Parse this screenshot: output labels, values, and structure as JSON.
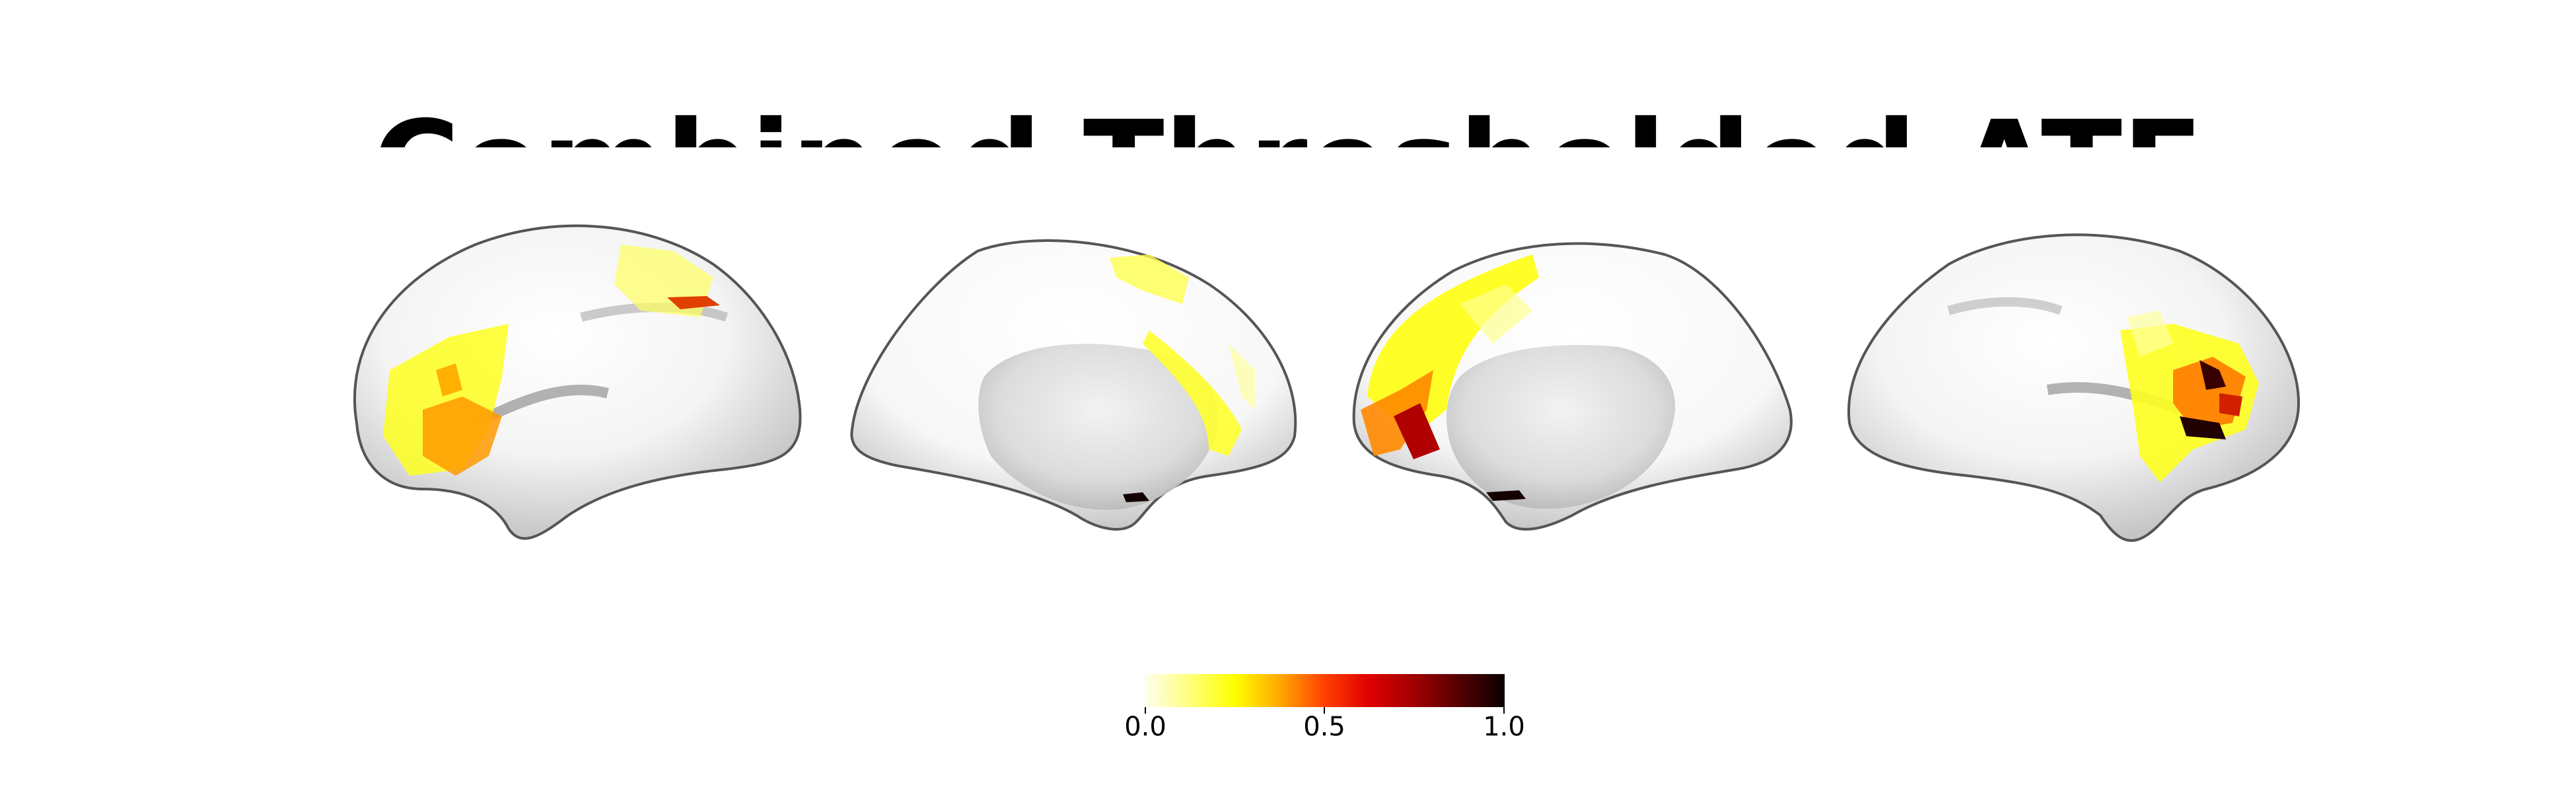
{
  "title": "Combined Thresholded ATF",
  "colorbar": {
    "colormap": "hot_r",
    "ticks": [
      "0.0",
      "0.5",
      "1.0"
    ],
    "range": [
      0.0,
      1.0
    ],
    "colors": {
      "low": "#fffef0",
      "yellow": "#ffff00",
      "orange": "#ffa500",
      "red": "#e00000",
      "high": "#0a0000"
    }
  },
  "views": [
    "left-lateral",
    "left-medial",
    "right-medial",
    "right-lateral"
  ]
}
